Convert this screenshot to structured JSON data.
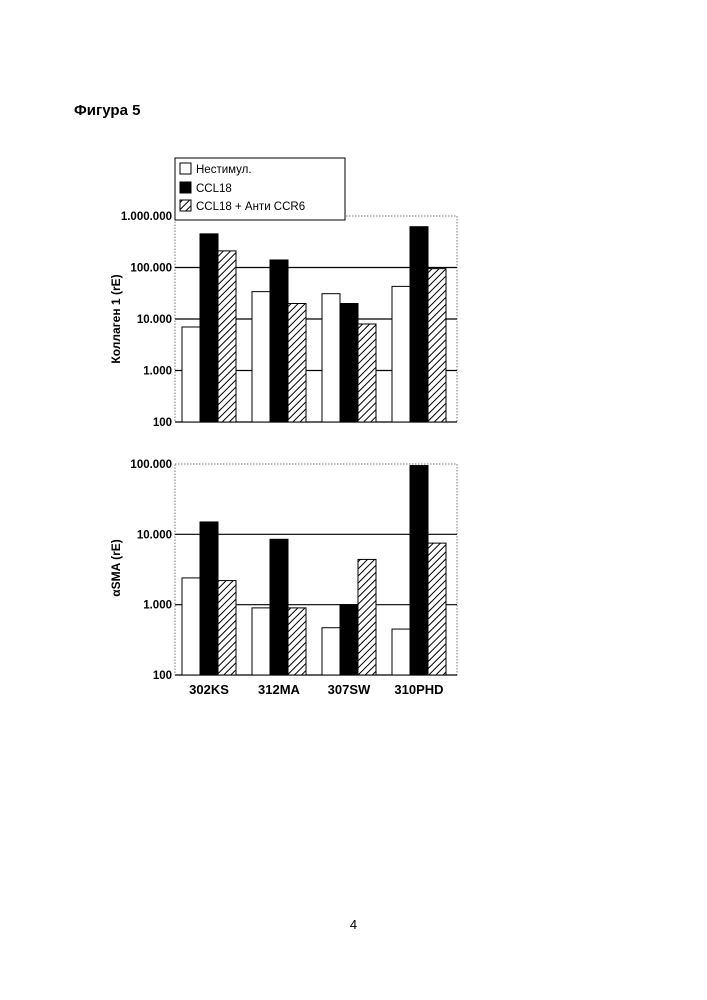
{
  "page": {
    "figure_title": "Фигура 5",
    "page_number": "4"
  },
  "legend": {
    "items": [
      {
        "label": "Нестимул.",
        "fill": "white"
      },
      {
        "label": "CCL18",
        "fill": "black"
      },
      {
        "label": "CCL18 + Анти CCR6",
        "fill": "hatched"
      }
    ]
  },
  "chart_data": [
    {
      "type": "bar",
      "scale": "log",
      "ylabel": "Коллаген 1 (rE)",
      "xlabel": "",
      "ylim": [
        100,
        1000000
      ],
      "y_ticks": [
        {
          "value": 100,
          "label": "100"
        },
        {
          "value": 1000,
          "label": "1.000"
        },
        {
          "value": 10000,
          "label": "10.000"
        },
        {
          "value": 100000,
          "label": "100.000"
        },
        {
          "value": 1000000,
          "label": "1.000.000"
        }
      ],
      "categories": [
        "302KS",
        "312MA",
        "307SW",
        "310PHD"
      ],
      "series": [
        {
          "name": "Нестимул.",
          "fill": "white",
          "values": [
            7000,
            34000,
            31000,
            43000
          ]
        },
        {
          "name": "CCL18",
          "fill": "black",
          "values": [
            450000,
            140000,
            20000,
            620000
          ]
        },
        {
          "name": "CCL18 + Анти CCR6",
          "fill": "hatched",
          "values": [
            210000,
            20000,
            8000,
            95000
          ]
        }
      ],
      "grid": true,
      "show_category_labels": false
    },
    {
      "type": "bar",
      "scale": "log",
      "ylabel": "αSMA (rE)",
      "xlabel": "",
      "ylim": [
        100,
        100000
      ],
      "y_ticks": [
        {
          "value": 100,
          "label": "100"
        },
        {
          "value": 1000,
          "label": "1.000"
        },
        {
          "value": 10000,
          "label": "10.000"
        },
        {
          "value": 100000,
          "label": "100.000"
        }
      ],
      "categories": [
        "302KS",
        "312MA",
        "307SW",
        "310PHD"
      ],
      "series": [
        {
          "name": "Нестимул.",
          "fill": "white",
          "values": [
            2400,
            900,
            470,
            450
          ]
        },
        {
          "name": "CCL18",
          "fill": "black",
          "values": [
            15000,
            8500,
            1000,
            95000
          ]
        },
        {
          "name": "CCL18 + Анти CCR6",
          "fill": "hatched",
          "values": [
            2200,
            900,
            4400,
            7500
          ]
        }
      ],
      "grid": true,
      "show_category_labels": true
    }
  ]
}
